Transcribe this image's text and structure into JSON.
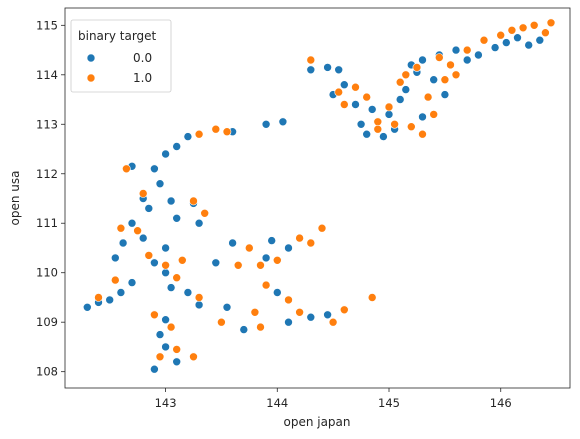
{
  "chart_data": {
    "type": "scatter",
    "xlabel": "open japan",
    "ylabel": "open usa",
    "xlim": [
      142.1,
      146.62
    ],
    "ylim": [
      107.67,
      115.35
    ],
    "xticks": [
      143,
      144,
      145,
      146
    ],
    "yticks": [
      108,
      109,
      110,
      111,
      112,
      113,
      114,
      115
    ],
    "grid": false,
    "legend": {
      "title": "binary target",
      "placement": "top-left",
      "entries": [
        {
          "label": "0.0",
          "color": "#1f77b4"
        },
        {
          "label": "1.0",
          "color": "#ff7f0e"
        }
      ]
    },
    "series": [
      {
        "name": "0.0",
        "color": "#1f77b4",
        "points": [
          [
            142.3,
            109.3
          ],
          [
            142.4,
            109.4
          ],
          [
            142.5,
            109.45
          ],
          [
            142.6,
            109.6
          ],
          [
            142.7,
            109.8
          ],
          [
            142.55,
            110.3
          ],
          [
            142.62,
            110.6
          ],
          [
            142.8,
            110.7
          ],
          [
            142.9,
            110.2
          ],
          [
            143.0,
            110.5
          ],
          [
            142.7,
            111.0
          ],
          [
            142.8,
            111.5
          ],
          [
            142.95,
            111.8
          ],
          [
            142.85,
            111.3
          ],
          [
            143.05,
            111.45
          ],
          [
            142.7,
            112.15
          ],
          [
            142.9,
            112.1
          ],
          [
            143.0,
            112.4
          ],
          [
            143.1,
            112.55
          ],
          [
            143.2,
            112.75
          ],
          [
            143.25,
            111.4
          ],
          [
            143.1,
            111.1
          ],
          [
            143.0,
            110.0
          ],
          [
            143.05,
            109.7
          ],
          [
            143.2,
            109.6
          ],
          [
            143.0,
            109.05
          ],
          [
            142.95,
            108.75
          ],
          [
            143.0,
            108.5
          ],
          [
            143.1,
            108.2
          ],
          [
            142.9,
            108.05
          ],
          [
            143.3,
            109.35
          ],
          [
            143.45,
            110.2
          ],
          [
            143.6,
            110.6
          ],
          [
            143.55,
            109.3
          ],
          [
            143.7,
            108.85
          ],
          [
            143.9,
            110.3
          ],
          [
            143.95,
            110.65
          ],
          [
            144.1,
            110.5
          ],
          [
            144.0,
            109.6
          ],
          [
            144.3,
            109.1
          ],
          [
            144.1,
            109.0
          ],
          [
            144.45,
            109.15
          ],
          [
            143.3,
            111.0
          ],
          [
            143.6,
            112.85
          ],
          [
            143.9,
            113.0
          ],
          [
            144.05,
            113.05
          ],
          [
            144.3,
            114.1
          ],
          [
            144.45,
            114.15
          ],
          [
            144.5,
            113.6
          ],
          [
            144.6,
            113.8
          ],
          [
            144.55,
            114.1
          ],
          [
            144.7,
            113.4
          ],
          [
            144.75,
            113.0
          ],
          [
            144.8,
            112.8
          ],
          [
            144.85,
            113.3
          ],
          [
            145.0,
            113.2
          ],
          [
            145.05,
            112.9
          ],
          [
            145.1,
            113.5
          ],
          [
            145.15,
            113.7
          ],
          [
            145.2,
            114.2
          ],
          [
            145.3,
            114.3
          ],
          [
            145.45,
            114.4
          ],
          [
            145.6,
            114.5
          ],
          [
            145.7,
            114.3
          ],
          [
            145.8,
            114.4
          ],
          [
            145.95,
            114.55
          ],
          [
            146.05,
            114.65
          ],
          [
            146.15,
            114.75
          ],
          [
            146.25,
            114.6
          ],
          [
            146.35,
            114.7
          ],
          [
            145.4,
            113.9
          ],
          [
            145.5,
            113.6
          ],
          [
            145.3,
            113.15
          ],
          [
            144.95,
            112.75
          ],
          [
            145.25,
            114.05
          ]
        ]
      },
      {
        "name": "1.0",
        "color": "#ff7f0e",
        "points": [
          [
            142.4,
            109.5
          ],
          [
            142.55,
            109.85
          ],
          [
            142.6,
            110.9
          ],
          [
            142.75,
            110.85
          ],
          [
            142.85,
            110.35
          ],
          [
            143.0,
            110.15
          ],
          [
            143.15,
            110.25
          ],
          [
            143.1,
            109.9
          ],
          [
            143.3,
            109.5
          ],
          [
            142.9,
            109.15
          ],
          [
            142.95,
            108.3
          ],
          [
            143.1,
            108.45
          ],
          [
            143.25,
            108.3
          ],
          [
            143.05,
            108.9
          ],
          [
            142.8,
            111.6
          ],
          [
            143.25,
            111.45
          ],
          [
            143.35,
            111.2
          ],
          [
            142.65,
            112.1
          ],
          [
            143.3,
            112.8
          ],
          [
            143.45,
            112.9
          ],
          [
            143.55,
            112.85
          ],
          [
            143.65,
            110.15
          ],
          [
            143.75,
            110.5
          ],
          [
            143.85,
            110.15
          ],
          [
            143.9,
            109.75
          ],
          [
            143.5,
            109.0
          ],
          [
            143.8,
            109.2
          ],
          [
            143.85,
            108.9
          ],
          [
            144.1,
            109.45
          ],
          [
            144.2,
            109.2
          ],
          [
            144.3,
            110.6
          ],
          [
            144.4,
            110.9
          ],
          [
            144.2,
            110.7
          ],
          [
            144.0,
            110.25
          ],
          [
            144.5,
            109.0
          ],
          [
            144.6,
            109.25
          ],
          [
            144.85,
            109.5
          ],
          [
            144.3,
            114.3
          ],
          [
            144.55,
            113.65
          ],
          [
            144.6,
            113.4
          ],
          [
            144.7,
            113.75
          ],
          [
            144.8,
            113.55
          ],
          [
            144.9,
            113.05
          ],
          [
            145.05,
            113.0
          ],
          [
            145.2,
            112.95
          ],
          [
            145.3,
            112.8
          ],
          [
            145.4,
            113.2
          ],
          [
            145.1,
            113.85
          ],
          [
            145.25,
            114.15
          ],
          [
            145.45,
            114.35
          ],
          [
            145.55,
            114.2
          ],
          [
            145.7,
            114.5
          ],
          [
            145.85,
            114.7
          ],
          [
            146.0,
            114.8
          ],
          [
            146.1,
            114.9
          ],
          [
            146.2,
            114.95
          ],
          [
            146.3,
            115.0
          ],
          [
            146.45,
            115.05
          ],
          [
            146.4,
            114.85
          ],
          [
            145.6,
            114.0
          ],
          [
            145.35,
            113.55
          ],
          [
            145.5,
            113.9
          ],
          [
            145.0,
            113.35
          ],
          [
            144.9,
            112.9
          ],
          [
            145.15,
            114.0
          ]
        ]
      }
    ]
  }
}
